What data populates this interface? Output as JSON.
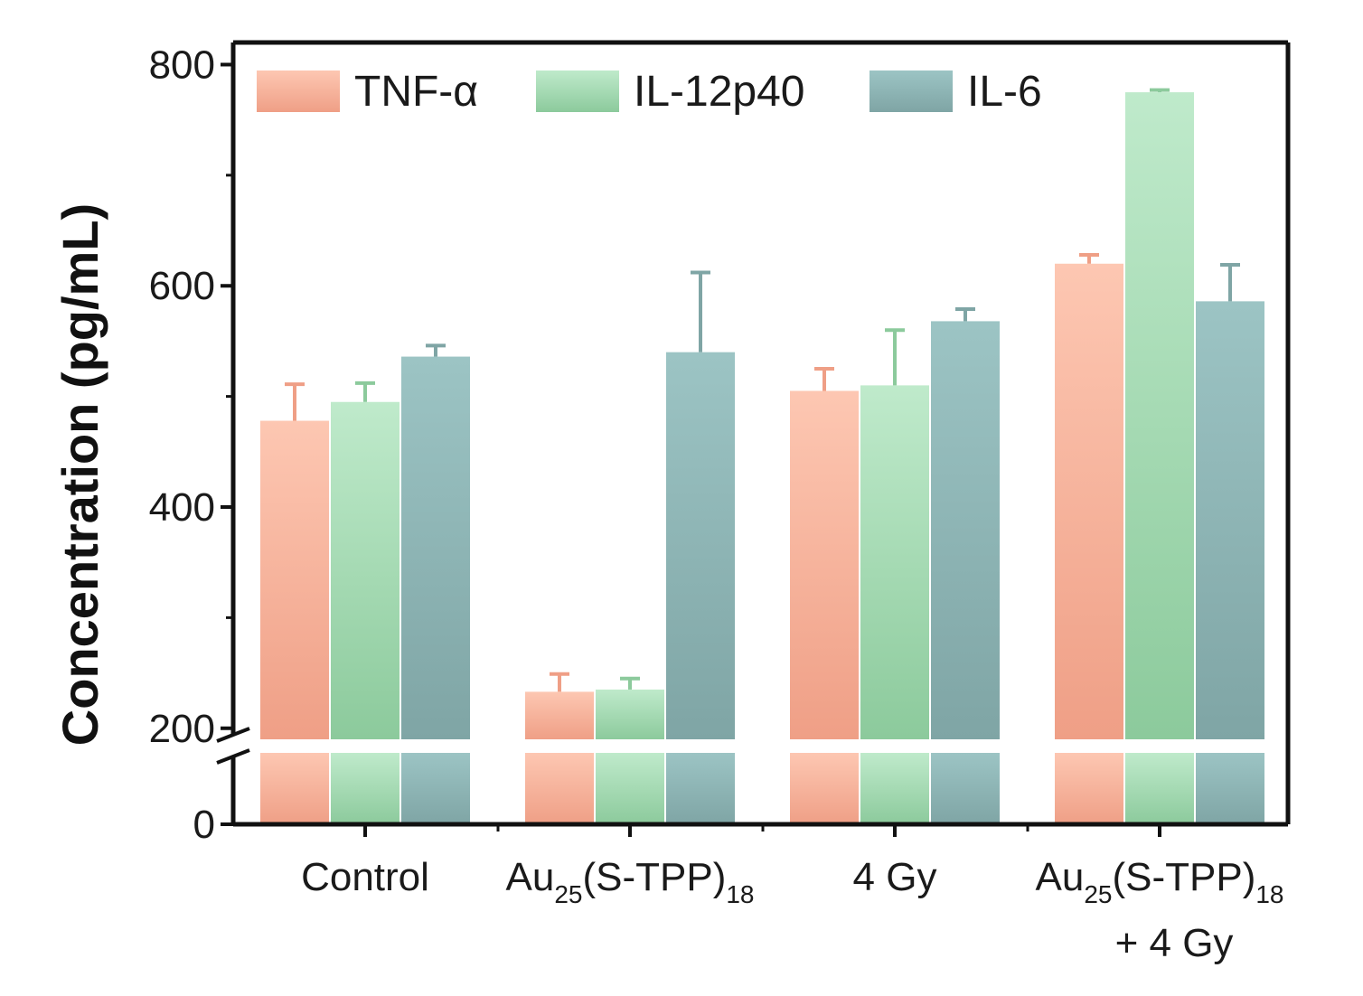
{
  "chart_data": {
    "type": "bar",
    "ylabel": "Concentration (pg/mL)",
    "xlabel": "",
    "y_axis_break": [
      200,
      800
    ],
    "ylim_lower": [
      0,
      200
    ],
    "ylim_upper": [
      190,
      820
    ],
    "yticks": [
      "0",
      "200",
      "400",
      "600",
      "800"
    ],
    "categories": [
      {
        "main": "Control",
        "sub1": "",
        "mid": "",
        "sub2": "",
        "line2": ""
      },
      {
        "main": "Au",
        "sub1": "25",
        "mid": "(S-TPP)",
        "sub2": "18",
        "line2": ""
      },
      {
        "main": "4 Gy",
        "sub1": "",
        "mid": "",
        "sub2": "",
        "line2": ""
      },
      {
        "main": "Au",
        "sub1": "25",
        "mid": "(S-TPP)",
        "sub2": "18",
        "line2": "+ 4 Gy"
      }
    ],
    "series": [
      {
        "name": "TNF-α",
        "values": [
          478,
          233,
          505,
          620
        ],
        "errors": [
          33,
          16,
          20,
          8
        ],
        "color_top": "#fdc7b2",
        "color_bottom": "#ef9f86"
      },
      {
        "name": "IL-12p40",
        "values": [
          495,
          235,
          510,
          775
        ],
        "errors": [
          17,
          10,
          50,
          2
        ],
        "color_top": "#bfeacb",
        "color_bottom": "#8cca9c"
      },
      {
        "name": "IL-6",
        "values": [
          536,
          540,
          568,
          586
        ],
        "errors": [
          10,
          72,
          11,
          33
        ],
        "color_top": "#9cc4c4",
        "color_bottom": "#7fa5a5"
      }
    ],
    "legend_position": "top",
    "grid": false
  }
}
